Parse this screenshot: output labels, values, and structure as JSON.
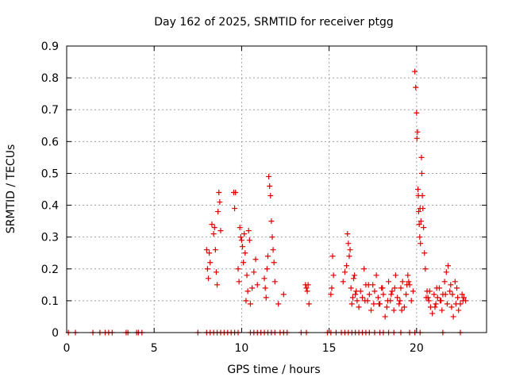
{
  "chart_data": {
    "type": "scatter",
    "title": "Day 162 of 2025, SRMTID for receiver ptgg",
    "xlabel": "GPS time / hours",
    "ylabel": "SRMTID / TECUs",
    "xlim": [
      0,
      24
    ],
    "ylim": [
      0,
      0.9
    ],
    "xticks": [
      "0",
      "5",
      "10",
      "15",
      "20"
    ],
    "xtick_values": [
      0,
      5,
      10,
      15,
      20
    ],
    "yticks": [
      "0",
      "0.1",
      "0.2",
      "0.3",
      "0.4",
      "0.5",
      "0.6",
      "0.7",
      "0.8",
      "0.9"
    ],
    "ytick_values": [
      0,
      0.1,
      0.2,
      0.3,
      0.4,
      0.5,
      0.6,
      0.7,
      0.8,
      0.9
    ],
    "grid": true,
    "marker": "+",
    "color": "#e00000",
    "series": [
      {
        "name": "SRMTID",
        "x": [
          0.1,
          0.5,
          1.5,
          1.9,
          2.2,
          2.4,
          2.6,
          3.4,
          3.5,
          4.0,
          4.1,
          4.3,
          7.5,
          8.0,
          8.2,
          8.4,
          8.6,
          8.8,
          9.0,
          9.2,
          9.4,
          9.6,
          9.8,
          10.5,
          10.7,
          10.9,
          11.1,
          11.3,
          11.5,
          11.7,
          11.9,
          12.2,
          12.4,
          12.6,
          13.4,
          13.7,
          14.9,
          15.1,
          15.4,
          15.7,
          15.9,
          16.1,
          16.3,
          16.5,
          16.7,
          16.9,
          17.1,
          17.3,
          17.6,
          17.9,
          18.1,
          18.4,
          18.7,
          19.1,
          19.6,
          19.9,
          20.2,
          21.5,
          22.5,
          8.0,
          8.05,
          8.1,
          8.15,
          8.2,
          8.3,
          8.4,
          8.45,
          8.5,
          8.55,
          8.6,
          8.65,
          8.7,
          8.75,
          8.8,
          9.55,
          9.6,
          9.65,
          9.8,
          9.85,
          9.9,
          9.95,
          10.0,
          10.05,
          10.1,
          10.15,
          10.2,
          10.25,
          10.3,
          10.35,
          10.4,
          10.45,
          10.5,
          10.6,
          10.7,
          10.8,
          10.9,
          11.3,
          11.35,
          11.4,
          11.45,
          11.5,
          11.55,
          11.6,
          11.65,
          11.7,
          11.75,
          11.8,
          11.85,
          11.9,
          12.1,
          12.4,
          13.65,
          13.7,
          13.75,
          13.8,
          13.85,
          15.1,
          15.15,
          15.2,
          15.25,
          15.8,
          15.9,
          16.0,
          16.05,
          16.1,
          16.15,
          16.2,
          16.25,
          16.3,
          16.35,
          16.4,
          16.5,
          16.6,
          16.7,
          16.8,
          16.9,
          17.0,
          17.1,
          17.2,
          17.3,
          17.4,
          17.5,
          17.6,
          17.7,
          17.8,
          17.9,
          18.0,
          18.1,
          18.2,
          18.3,
          18.4,
          18.5,
          18.6,
          18.7,
          18.8,
          18.9,
          19.0,
          19.1,
          19.2,
          19.3,
          19.4,
          19.5,
          19.6,
          19.7,
          19.8,
          19.9,
          19.95,
          20.0,
          20.02,
          20.05,
          20.08,
          20.1,
          20.12,
          20.15,
          20.18,
          20.2,
          20.22,
          20.25,
          20.28,
          20.3,
          20.33,
          20.36,
          20.4,
          20.45,
          20.5,
          20.6,
          20.7,
          20.8,
          20.9,
          21.0,
          21.1,
          21.2,
          21.3,
          21.4,
          21.5,
          21.6,
          21.7,
          21.8,
          21.9,
          22.0,
          22.1,
          22.2,
          22.3,
          22.4,
          22.5,
          22.6,
          22.7,
          22.8,
          16.45,
          17.25,
          17.85,
          18.35,
          18.75,
          19.15,
          19.55,
          20.55,
          20.75,
          21.05,
          21.35,
          21.65,
          21.95,
          22.25,
          22.65,
          16.55,
          17.05,
          17.55,
          18.05,
          18.55,
          19.05,
          19.45,
          20.65,
          21.15,
          21.45,
          21.75,
          22.05,
          22.35
        ],
        "y": [
          0,
          0,
          0,
          0,
          0,
          0,
          0,
          0,
          0,
          0,
          0,
          0,
          0,
          0,
          0,
          0,
          0,
          0,
          0,
          0,
          0,
          0,
          0,
          0,
          0,
          0,
          0,
          0,
          0,
          0,
          0,
          0,
          0,
          0,
          0,
          0,
          0,
          0,
          0,
          0,
          0,
          0,
          0,
          0,
          0,
          0,
          0,
          0,
          0,
          0,
          0,
          0,
          0,
          0,
          0,
          0,
          0,
          0,
          0,
          0.26,
          0.2,
          0.17,
          0.25,
          0.22,
          0.34,
          0.31,
          0.33,
          0.26,
          0.19,
          0.15,
          0.38,
          0.44,
          0.41,
          0.32,
          0.44,
          0.39,
          0.44,
          0.2,
          0.16,
          0.33,
          0.3,
          0.29,
          0.27,
          0.22,
          0.31,
          0.25,
          0.1,
          0.18,
          0.13,
          0.32,
          0.29,
          0.09,
          0.14,
          0.19,
          0.23,
          0.15,
          0.17,
          0.14,
          0.11,
          0.2,
          0.24,
          0.49,
          0.46,
          0.43,
          0.35,
          0.3,
          0.26,
          0.22,
          0.16,
          0.09,
          0.12,
          0.15,
          0.14,
          0.13,
          0.15,
          0.09,
          0.12,
          0.14,
          0.24,
          0.18,
          0.16,
          0.19,
          0.21,
          0.31,
          0.28,
          0.24,
          0.26,
          0.14,
          0.09,
          0.11,
          0.17,
          0.12,
          0.1,
          0.08,
          0.13,
          0.11,
          0.2,
          0.15,
          0.1,
          0.12,
          0.07,
          0.15,
          0.13,
          0.18,
          0.11,
          0.09,
          0.14,
          0.12,
          0.05,
          0.08,
          0.16,
          0.1,
          0.13,
          0.07,
          0.18,
          0.11,
          0.09,
          0.14,
          0.16,
          0.08,
          0.12,
          0.18,
          0.15,
          0.1,
          0.13,
          0.82,
          0.77,
          0.69,
          0.61,
          0.63,
          0.45,
          0.43,
          0.38,
          0.34,
          0.3,
          0.39,
          0.28,
          0.35,
          0.55,
          0.5,
          0.43,
          0.39,
          0.33,
          0.25,
          0.2,
          0.13,
          0.1,
          0.08,
          0.06,
          0.12,
          0.09,
          0.11,
          0.14,
          0.1,
          0.12,
          0.16,
          0.19,
          0.21,
          0.13,
          0.08,
          0.05,
          0.16,
          0.14,
          0.07,
          0.09,
          0.12,
          0.11,
          0.1,
          0.18,
          0.15,
          0.09,
          0.1,
          0.14,
          0.07,
          0.16,
          0.11,
          0.13,
          0.08,
          0.1,
          0.12,
          0.15,
          0.09,
          0.1,
          0.13,
          0.1,
          0.09,
          0.14,
          0.12,
          0.1,
          0.15,
          0.11,
          0.14,
          0.07,
          0.09,
          0.12,
          0.11
        ]
      }
    ]
  }
}
